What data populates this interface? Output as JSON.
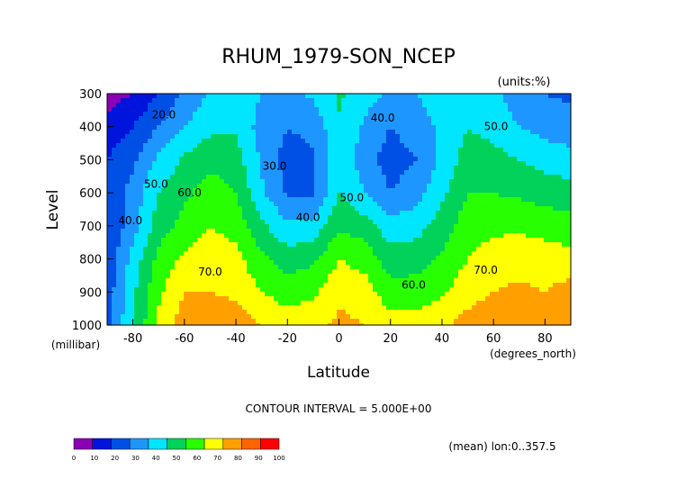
{
  "chart_data": {
    "type": "heatmap",
    "title": "RHUM_1979-SON_NCEP",
    "units": "(units:%)",
    "xlabel": "Latitude",
    "xunit": "(degrees_north)",
    "ylabel": "Level",
    "yunit": "(millibar)",
    "x_ticks": [
      -80,
      -60,
      -40,
      -20,
      0,
      20,
      40,
      60,
      80
    ],
    "y_ticks": [
      300,
      400,
      500,
      600,
      700,
      800,
      900,
      1000
    ],
    "xlim": [
      -90,
      90
    ],
    "ylim": [
      300,
      1000
    ],
    "y_reversed": true,
    "contour_interval_text": "CONTOUR INTERVAL = 5.000E+00",
    "footnote": "(mean) lon:0..357.5",
    "colorbar": {
      "levels": [
        0,
        10,
        20,
        30,
        40,
        50,
        60,
        70,
        80,
        90,
        100
      ],
      "colors": [
        "#8c00b4",
        "#0014dc",
        "#0050e6",
        "#1e96ff",
        "#00e6ff",
        "#00d25a",
        "#28ff00",
        "#ffff00",
        "#ffa000",
        "#ff6400",
        "#ff0000"
      ]
    },
    "contour_labels": [
      {
        "text": "20.0",
        "lat": -68,
        "p": 375
      },
      {
        "text": "50.0",
        "lat": -71,
        "p": 585
      },
      {
        "text": "40.0",
        "lat": -81,
        "p": 695
      },
      {
        "text": "60.0",
        "lat": -58,
        "p": 610
      },
      {
        "text": "70.0",
        "lat": -50,
        "p": 850
      },
      {
        "text": "30.0",
        "lat": -25,
        "p": 530
      },
      {
        "text": "40.0",
        "lat": -12,
        "p": 685
      },
      {
        "text": "50.0",
        "lat": 5,
        "p": 625
      },
      {
        "text": "40.0",
        "lat": 17,
        "p": 385
      },
      {
        "text": "50.0",
        "lat": 61,
        "p": 410
      },
      {
        "text": "60.0",
        "lat": 29,
        "p": 890
      },
      {
        "text": "70.0",
        "lat": 57,
        "p": 845
      }
    ],
    "field": {
      "lats": [
        -90,
        -80,
        -70,
        -60,
        -50,
        -40,
        -30,
        -20,
        -10,
        0,
        10,
        20,
        30,
        40,
        50,
        60,
        70,
        80,
        90
      ],
      "levels": [
        300,
        400,
        500,
        600,
        700,
        800,
        900,
        1000
      ],
      "rhum": [
        [
          5,
          10,
          20,
          32,
          42,
          45,
          40,
          38,
          42,
          52,
          45,
          38,
          40,
          45,
          48,
          42,
          35,
          30,
          28
        ],
        [
          14,
          20,
          30,
          40,
          47,
          48,
          36,
          30,
          33,
          48,
          38,
          30,
          35,
          42,
          50,
          46,
          40,
          36,
          34
        ],
        [
          20,
          28,
          42,
          52,
          58,
          55,
          38,
          26,
          28,
          48,
          35,
          25,
          30,
          42,
          55,
          54,
          50,
          46,
          44
        ],
        [
          22,
          34,
          50,
          58,
          64,
          60,
          42,
          28,
          28,
          50,
          40,
          30,
          36,
          48,
          60,
          60,
          58,
          56,
          54
        ],
        [
          20,
          36,
          55,
          64,
          70,
          66,
          52,
          42,
          44,
          58,
          55,
          44,
          46,
          54,
          66,
          68,
          68,
          66,
          64
        ],
        [
          22,
          44,
          63,
          72,
          76,
          73,
          62,
          55,
          58,
          70,
          66,
          55,
          56,
          62,
          70,
          74,
          76,
          75,
          74
        ],
        [
          24,
          48,
          68,
          80,
          80,
          78,
          70,
          65,
          68,
          78,
          75,
          64,
          64,
          68,
          76,
          80,
          82,
          80,
          84
        ],
        [
          26,
          50,
          72,
          86,
          87,
          85,
          80,
          76,
          78,
          82,
          80,
          75,
          75,
          78,
          84,
          86,
          88,
          86,
          84
        ]
      ]
    }
  }
}
